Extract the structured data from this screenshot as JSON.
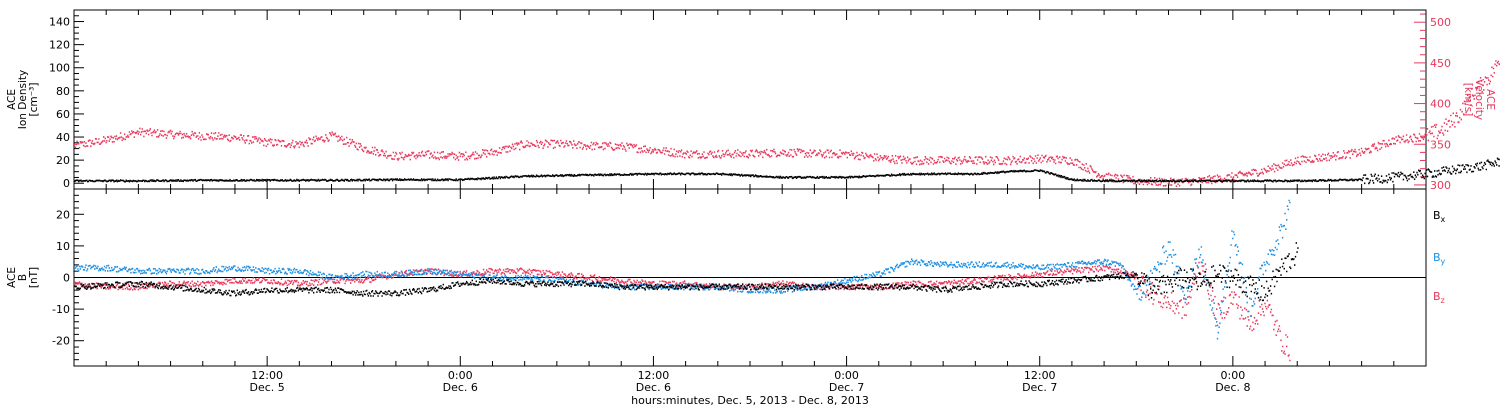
{
  "chart_data": [
    {
      "type": "line",
      "panel": "top",
      "ylabel_left": [
        "ACE",
        "Ion Density",
        "[cm⁻³]"
      ],
      "ylabel_right": [
        "ACE",
        "Velocity",
        "[km/s]"
      ],
      "x_range_hours": [
        0,
        84
      ],
      "ylim_left": [
        -5,
        150
      ],
      "ylim_right": [
        295,
        515
      ],
      "left_ticks": [
        0,
        20,
        40,
        60,
        80,
        100,
        120,
        140
      ],
      "right_ticks": [
        300,
        350,
        400,
        450,
        500
      ],
      "series": [
        {
          "axis": "left",
          "color": "#000000",
          "x": [
            0,
            4,
            8,
            12,
            16,
            20,
            24,
            28,
            32,
            36,
            40,
            44,
            48,
            52,
            56,
            58,
            60,
            62,
            64,
            68,
            72,
            76,
            80,
            82,
            84,
            86,
            87.5,
            89,
            90.5
          ],
          "values": [
            2,
            2,
            2.5,
            2.5,
            2.5,
            3,
            3,
            6,
            7,
            8,
            8,
            5,
            5,
            8,
            8,
            10,
            11,
            3,
            2,
            2,
            2,
            2,
            3,
            5,
            8,
            12,
            15,
            20,
            22
          ]
        },
        {
          "axis": "right",
          "color": "#e8385c",
          "x": [
            0,
            2,
            4,
            6,
            8,
            10,
            12,
            14,
            16,
            18,
            20,
            22,
            24,
            26,
            28,
            30,
            32,
            34,
            36,
            38,
            40,
            42,
            44,
            46,
            48,
            50,
            52,
            54,
            56,
            58,
            60,
            62,
            64,
            66,
            68,
            70,
            72,
            74,
            76,
            78,
            80,
            82,
            84,
            85,
            86,
            87,
            88,
            89,
            90,
            90.5
          ],
          "values": [
            348,
            355,
            365,
            362,
            360,
            358,
            352,
            350,
            360,
            345,
            335,
            337,
            335,
            340,
            350,
            350,
            348,
            347,
            343,
            338,
            338,
            338,
            340,
            338,
            338,
            333,
            330,
            330,
            330,
            330,
            332,
            330,
            310,
            305,
            303,
            305,
            310,
            318,
            330,
            335,
            340,
            355,
            360,
            368,
            385,
            415,
            435,
            470,
            498,
            495
          ]
        }
      ]
    },
    {
      "type": "line",
      "panel": "bottom",
      "ylabel_left": [
        "ACE",
        "B",
        "[nT]"
      ],
      "xlabel": "hours:minutes, Dec.  5, 2013 - Dec.  8, 2013",
      "x_range_hours": [
        0,
        84
      ],
      "ylim": [
        -28,
        28
      ],
      "y_ticks": [
        -20,
        -10,
        0,
        10,
        20
      ],
      "zero_line": true,
      "x_tick_labels": [
        {
          "hour": 12,
          "time": "12:00",
          "date": "Dec. 5"
        },
        {
          "hour": 24,
          "time": "0:00",
          "date": "Dec. 6"
        },
        {
          "hour": 36,
          "time": "12:00",
          "date": "Dec. 6"
        },
        {
          "hour": 48,
          "time": "0:00",
          "date": "Dec. 7"
        },
        {
          "hour": 60,
          "time": "12:00",
          "date": "Dec. 7"
        },
        {
          "hour": 72,
          "time": "0:00",
          "date": "Dec. 8"
        }
      ],
      "series": [
        {
          "name": "Bx",
          "label_main": "B",
          "label_sub": "x",
          "color": "#000000",
          "x": [
            0,
            4,
            8,
            10,
            12,
            14,
            16,
            18,
            20,
            22,
            24,
            26,
            28,
            30,
            32,
            34,
            36,
            38,
            40,
            42,
            44,
            46,
            48,
            50,
            52,
            54,
            56,
            58,
            60,
            62,
            64,
            66,
            67,
            68,
            69,
            70,
            71,
            72,
            73,
            74,
            75,
            76
          ],
          "values": [
            -3,
            -2,
            -4,
            -5,
            -4,
            -4,
            -4,
            -5,
            -5,
            -4,
            -2,
            -1,
            -2,
            -2,
            -2,
            -3,
            -3,
            -3,
            -3,
            -3,
            -3,
            -3,
            -3,
            -3,
            -3,
            -4,
            -3,
            -2,
            -2,
            -1,
            0,
            1,
            -4,
            -2,
            0,
            -2,
            1,
            0,
            -3,
            -5,
            3,
            8
          ]
        },
        {
          "name": "By",
          "label_main": "B",
          "label_sub": "y",
          "color": "#1a8fe3",
          "x": [
            0,
            2,
            4,
            6,
            8,
            10,
            12,
            14,
            16,
            18,
            20,
            22,
            24,
            26,
            28,
            30,
            32,
            34,
            36,
            38,
            40,
            42,
            44,
            46,
            48,
            50,
            52,
            54,
            56,
            58,
            60,
            62,
            64,
            65,
            66,
            67,
            68,
            69,
            70,
            71,
            72,
            73,
            74,
            75,
            75.5
          ],
          "values": [
            3,
            3,
            2,
            2,
            2,
            3,
            2,
            2,
            0,
            1,
            1,
            2,
            1,
            0,
            0,
            -1,
            -2,
            -3,
            -3,
            -3,
            -3,
            -4,
            -4,
            -3,
            -1,
            1,
            5,
            4,
            4,
            4,
            3,
            4,
            5,
            4,
            -5,
            0,
            10,
            -5,
            8,
            -16,
            15,
            -10,
            5,
            15,
            22
          ]
        },
        {
          "name": "Bz",
          "label_main": "B",
          "label_sub": "z",
          "color": "#e8385c",
          "x": [
            0,
            2,
            4,
            6,
            8,
            10,
            12,
            14,
            16,
            18,
            20,
            22,
            24,
            26,
            28,
            30,
            32,
            34,
            36,
            38,
            40,
            42,
            44,
            46,
            48,
            50,
            52,
            54,
            56,
            58,
            60,
            62,
            64,
            65,
            66,
            67,
            68,
            69,
            70,
            71,
            72,
            73,
            74,
            75,
            75.5
          ],
          "values": [
            -2,
            -3,
            -3,
            -2,
            -2,
            -1,
            -1,
            -2,
            -1,
            -1,
            1,
            2,
            1,
            2,
            2,
            1,
            0,
            -1,
            -2,
            -2,
            -3,
            -3,
            -2,
            -3,
            -3,
            -3,
            -2,
            -2,
            -1,
            0,
            1,
            2,
            3,
            2,
            0,
            -5,
            -8,
            -10,
            5,
            -12,
            -6,
            -15,
            -8,
            -20,
            -23
          ]
        }
      ]
    }
  ]
}
